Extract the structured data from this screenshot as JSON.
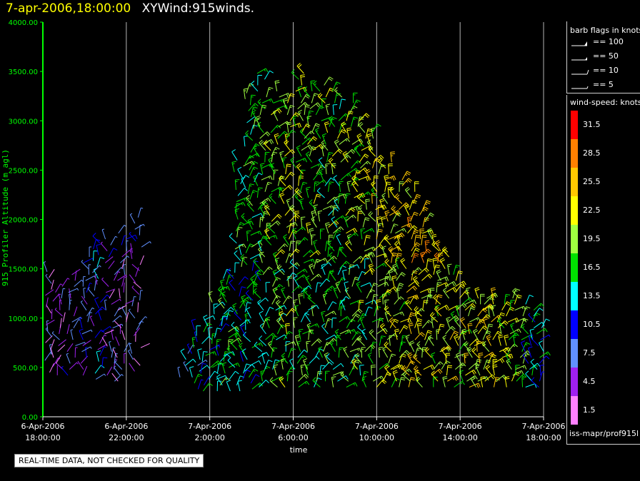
{
  "header": {
    "time_label": "7-apr-2006,18:00:00",
    "plot_name": "XYWind:915winds."
  },
  "chart_data": {
    "type": "wind-barb time-height",
    "ylabel": "915 Profiler Altitude (m agl)",
    "xlabel": "time",
    "ylim": [
      0,
      4000
    ],
    "y_ticks": [
      "0.00",
      "500.00",
      "1000.00",
      "1500.00",
      "2000.00",
      "2500.00",
      "3000.00",
      "3500.00",
      "4000.00"
    ],
    "x_range_hours": [
      0,
      24
    ],
    "x_ticks": [
      {
        "date": "6-Apr-2006",
        "time": "18:00:00",
        "hour": 0
      },
      {
        "date": "6-Apr-2006",
        "time": "22:00:00",
        "hour": 4
      },
      {
        "date": "7-Apr-2006",
        "time": "2:00:00",
        "hour": 8
      },
      {
        "date": "7-Apr-2006",
        "time": "6:00:00",
        "hour": 12
      },
      {
        "date": "7-Apr-2006",
        "time": "10:00:00",
        "hour": 16
      },
      {
        "date": "7-Apr-2006",
        "time": "14:00:00",
        "hour": 20
      },
      {
        "date": "7-Apr-2006",
        "time": "18:00:00",
        "hour": 24
      }
    ],
    "profiles": [
      {
        "hour": 0.25,
        "top": 1480,
        "base": 450,
        "spd": 4.5
      },
      {
        "hour": 0.75,
        "top": 1350,
        "base": 420,
        "spd": 4.5
      },
      {
        "hour": 1.4,
        "top": 1450,
        "base": 420,
        "spd": 6
      },
      {
        "hour": 2.0,
        "top": 1650,
        "base": 420,
        "spd": 8
      },
      {
        "hour": 2.6,
        "top": 1760,
        "base": 380,
        "spd": 9
      },
      {
        "hour": 3.2,
        "top": 1850,
        "base": 360,
        "spd": 6
      },
      {
        "hour": 3.8,
        "top": 1880,
        "base": 360,
        "spd": 4.5
      },
      {
        "hour": 4.5,
        "top": 2050,
        "base": 460,
        "spd": 4.5
      },
      {
        "hour": 6.8,
        "top": 650,
        "base": 400,
        "spd": 10
      },
      {
        "hour": 7.3,
        "top": 880,
        "base": 280,
        "spd": 12
      },
      {
        "hour": 7.8,
        "top": 1000,
        "base": 260,
        "spd": 13
      },
      {
        "hour": 8.3,
        "top": 1300,
        "base": 260,
        "spd": 15
      },
      {
        "hour": 8.8,
        "top": 1450,
        "base": 260,
        "spd": 16
      },
      {
        "hour": 9.4,
        "top": 2650,
        "base": 260,
        "spd": 14
      },
      {
        "hour": 9.9,
        "top": 3280,
        "base": 280,
        "spd": 14
      },
      {
        "hour": 10.5,
        "top": 3480,
        "base": 300,
        "spd": 15
      },
      {
        "hour": 11.1,
        "top": 3300,
        "base": 300,
        "spd": 17
      },
      {
        "hour": 11.7,
        "top": 3200,
        "base": 300,
        "spd": 18
      },
      {
        "hour": 12.3,
        "top": 3500,
        "base": 300,
        "spd": 17
      },
      {
        "hour": 12.9,
        "top": 3300,
        "base": 300,
        "spd": 17
      },
      {
        "hour": 13.5,
        "top": 3380,
        "base": 300,
        "spd": 16
      },
      {
        "hour": 14.1,
        "top": 3350,
        "base": 300,
        "spd": 16
      },
      {
        "hour": 14.7,
        "top": 3200,
        "base": 300,
        "spd": 17
      },
      {
        "hour": 15.3,
        "top": 3050,
        "base": 300,
        "spd": 18
      },
      {
        "hour": 15.9,
        "top": 2900,
        "base": 300,
        "spd": 19
      },
      {
        "hour": 16.5,
        "top": 2600,
        "base": 300,
        "spd": 20
      },
      {
        "hour": 17.0,
        "top": 2450,
        "base": 300,
        "spd": 21
      },
      {
        "hour": 17.6,
        "top": 2300,
        "base": 300,
        "spd": 22
      },
      {
        "hour": 18.2,
        "top": 2150,
        "base": 300,
        "spd": 22
      },
      {
        "hour": 18.8,
        "top": 1800,
        "base": 300,
        "spd": 21
      },
      {
        "hour": 19.3,
        "top": 1700,
        "base": 300,
        "spd": 22
      },
      {
        "hour": 19.9,
        "top": 1450,
        "base": 300,
        "spd": 20
      },
      {
        "hour": 20.4,
        "top": 1250,
        "base": 300,
        "spd": 22
      },
      {
        "hour": 20.9,
        "top": 1200,
        "base": 300,
        "spd": 22
      },
      {
        "hour": 21.3,
        "top": 1250,
        "base": 300,
        "spd": 22
      },
      {
        "hour": 21.8,
        "top": 1250,
        "base": 300,
        "spd": 22
      },
      {
        "hour": 22.3,
        "top": 1250,
        "base": 300,
        "spd": 20
      },
      {
        "hour": 22.8,
        "top": 1250,
        "base": 300,
        "spd": 18
      },
      {
        "hour": 23.3,
        "top": 1150,
        "base": 300,
        "spd": 14
      },
      {
        "hour": 23.8,
        "top": 1000,
        "base": 300,
        "spd": 12
      }
    ]
  },
  "legend": {
    "barb_title": "barb flags in knots",
    "barbs": [
      {
        "label": "== 100",
        "kind": "pennant"
      },
      {
        "label": "== 50",
        "kind": "flag"
      },
      {
        "label": "== 10",
        "kind": "full"
      },
      {
        "label": "== 5",
        "kind": "half"
      }
    ],
    "speed_title": "wind-speed: knots",
    "speed_bins": [
      {
        "label": "31.5",
        "color": "#ff0000"
      },
      {
        "label": "28.5",
        "color": "#ff8000"
      },
      {
        "label": "25.5",
        "color": "#ffc800"
      },
      {
        "label": "22.5",
        "color": "#ffff00"
      },
      {
        "label": "19.5",
        "color": "#a0ff40"
      },
      {
        "label": "16.5",
        "color": "#00e000"
      },
      {
        "label": "13.5",
        "color": "#00ffff"
      },
      {
        "label": "10.5",
        "color": "#0000ff"
      },
      {
        "label": "7.5",
        "color": "#6090ff"
      },
      {
        "label": "4.5",
        "color": "#a020f0"
      },
      {
        "label": "1.5",
        "color": "#ff80ff"
      }
    ]
  },
  "source": "iss-mapr/prof915l",
  "note": "REAL-TIME DATA, NOT CHECKED FOR QUALITY",
  "colors": {
    "axis": "#00ff00",
    "grid": "#b4b4b4",
    "background": "#000000"
  }
}
